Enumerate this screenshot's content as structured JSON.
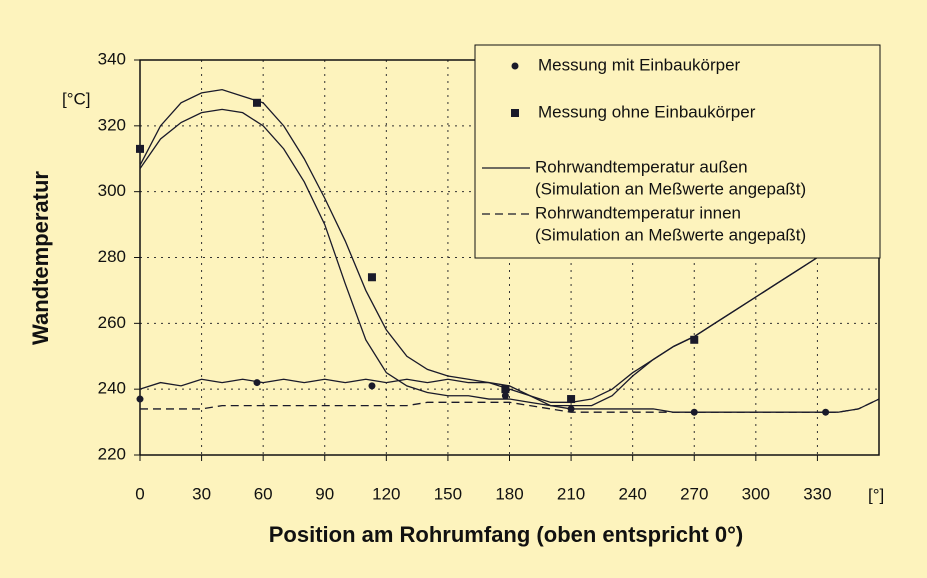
{
  "chart_data": {
    "type": "line",
    "y_label": "Wandtemperatur",
    "y_unit": "[°C]",
    "x_label": "Position am Rohrumfang (oben entspricht 0°)",
    "x_unit": "[°]",
    "xlim": [
      0,
      360
    ],
    "xticks": [
      0,
      30,
      60,
      90,
      120,
      150,
      180,
      210,
      240,
      270,
      300,
      330
    ],
    "ylim": [
      220,
      340
    ],
    "yticks": [
      220,
      240,
      260,
      280,
      300,
      320,
      340
    ],
    "grid": true,
    "legend": "upper right",
    "x": [
      0,
      10,
      20,
      30,
      40,
      50,
      60,
      70,
      80,
      90,
      100,
      110,
      120,
      130,
      140,
      150,
      160,
      170,
      180,
      190,
      200,
      210,
      220,
      230,
      240,
      250,
      260,
      270,
      280,
      290,
      300,
      310,
      320,
      330,
      340,
      350,
      360
    ],
    "series": [
      {
        "name": "Rohrwandtemperatur außen",
        "note": "(Simulation an Meßwerte angepaßt)",
        "color": "#1a1a2a",
        "dash": false,
        "values": [
          308,
          320,
          327,
          330,
          331,
          329,
          327,
          320,
          310,
          298,
          285,
          270,
          258,
          250,
          246,
          244,
          243,
          242,
          240,
          238,
          236,
          236,
          237,
          240,
          245,
          249,
          253,
          256,
          260,
          264,
          268,
          272,
          276,
          280,
          null,
          null,
          null
        ]
      },
      {
        "color": "#1a1a2a",
        "dash": false,
        "values": [
          307,
          316,
          321,
          324,
          325,
          324,
          320,
          313,
          303,
          290,
          272,
          255,
          245,
          241,
          239,
          238,
          238,
          237,
          237,
          236,
          235,
          235,
          235,
          238,
          244,
          249,
          253,
          256,
          260,
          264,
          268,
          272,
          276,
          280,
          null,
          null,
          null
        ]
      },
      {
        "name": "Rohrwandtemperatur innen",
        "note": "(Simulation an Meßwerte angepaßt)",
        "color": "#1a1a2a",
        "dash": true,
        "values": [
          234,
          234,
          234,
          234,
          235,
          235,
          235,
          235,
          235,
          235,
          235,
          235,
          235,
          235,
          236,
          236,
          236,
          236,
          236,
          235,
          234,
          233,
          233,
          233,
          233,
          233,
          233,
          233,
          233,
          233,
          233,
          233,
          233,
          233,
          233,
          234,
          237
        ]
      },
      {
        "color": "#1a1a2a",
        "dash": false,
        "values": [
          240,
          242,
          241,
          243,
          242,
          243,
          242,
          243,
          242,
          243,
          242,
          243,
          242,
          243,
          242,
          243,
          242,
          242,
          241,
          238,
          235,
          234,
          234,
          234,
          234,
          234,
          233,
          233,
          233,
          233,
          233,
          233,
          233,
          233,
          233,
          234,
          237
        ]
      }
    ],
    "points": [
      {
        "name": "Messung mit Einbaukörper",
        "marker": "circle",
        "color": "#1a1a2a",
        "x": [
          0,
          57,
          113,
          178,
          210,
          270,
          334
        ],
        "values": [
          237,
          242,
          241,
          238,
          234,
          233,
          233
        ]
      },
      {
        "name": "Messung ohne Einbaukörper",
        "marker": "square",
        "color": "#1a1a2a",
        "x": [
          0,
          57,
          113,
          178,
          210,
          270
        ],
        "values": [
          313,
          327,
          274,
          240,
          237,
          255
        ]
      }
    ]
  }
}
